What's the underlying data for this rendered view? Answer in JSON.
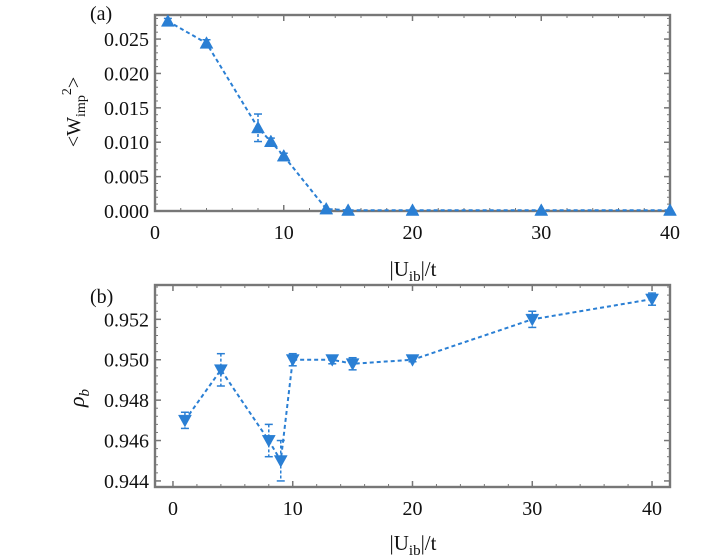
{
  "chart_data": [
    {
      "type": "line",
      "panel_label": "(a)",
      "x": [
        1,
        4,
        8,
        9,
        10,
        13.3,
        15,
        20,
        30,
        40
      ],
      "values": [
        0.0276,
        0.0244,
        0.0121,
        0.0101,
        0.008,
        0.0003,
        0.0001,
        0.0001,
        0.0001,
        0.0001
      ],
      "errors": [
        0.0004,
        0.0005,
        0.002,
        0.0005,
        0.0004,
        0.0001,
        0.0001,
        0.0001,
        0.0001,
        0.0001
      ],
      "marker": "triangle-up",
      "xlim": [
        0,
        40
      ],
      "ylim": [
        0,
        0.0285
      ],
      "xticks": [
        0,
        10,
        20,
        30,
        40
      ],
      "xtick_labels": [
        "0",
        "10",
        "20",
        "30",
        "40"
      ],
      "yticks": [
        0,
        0.005,
        0.01,
        0.015,
        0.02,
        0.025
      ],
      "ytick_labels": [
        "0.000",
        "0.005",
        "0.010",
        "0.015",
        "0.020",
        "0.025"
      ],
      "xlabel": {
        "pre": "|U",
        "sub": "ib",
        "post": "|/t"
      },
      "ylabel": {
        "pre": "<W",
        "sub": "imp",
        "sup": "2",
        "post": ">"
      },
      "color": "#2a7fd4"
    },
    {
      "type": "line",
      "panel_label": "(b)",
      "x": [
        1,
        4,
        8,
        9,
        10,
        13.3,
        15,
        20,
        30,
        40
      ],
      "values": [
        0.947,
        0.9495,
        0.946,
        0.945,
        0.95,
        0.95,
        0.9498,
        0.95,
        0.952,
        0.953
      ],
      "errors": [
        0.0004,
        0.0008,
        0.0008,
        0.001,
        0.0003,
        0.0002,
        0.0003,
        0.0001,
        0.0004,
        0.0003
      ],
      "marker": "triangle-down",
      "xlim": [
        -1.5,
        41.5
      ],
      "ylim": [
        0.9437,
        0.9537
      ],
      "xticks": [
        0,
        10,
        20,
        30,
        40
      ],
      "xtick_labels": [
        "0",
        "10",
        "20",
        "30",
        "40"
      ],
      "yticks": [
        0.944,
        0.946,
        0.948,
        0.95,
        0.952
      ],
      "ytick_labels": [
        "0.944",
        "0.946",
        "0.948",
        "0.950",
        "0.952"
      ],
      "xlabel": {
        "pre": "|U",
        "sub": "ib",
        "post": "|/t"
      },
      "ylabel": {
        "main": "ρ",
        "sub": "b"
      },
      "color": "#2a7fd4"
    }
  ]
}
